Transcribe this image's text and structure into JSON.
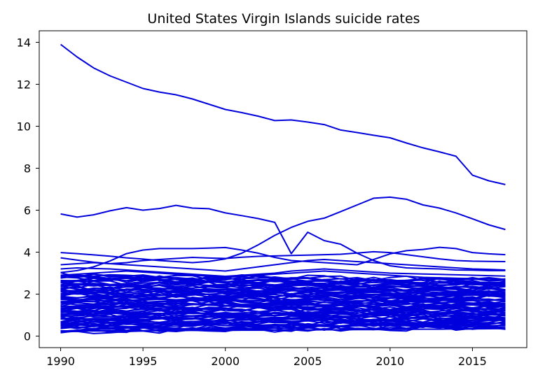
{
  "chart_data": {
    "type": "line",
    "title": "United States Virgin Islands suicide rates",
    "xlabel": "",
    "ylabel": "",
    "xlim": [
      1988.7,
      2018.3
    ],
    "ylim": [
      -0.55,
      14.55
    ],
    "x_ticks": [
      1990,
      1995,
      2000,
      2005,
      2010,
      2015
    ],
    "y_ticks": [
      0,
      2,
      4,
      6,
      8,
      10,
      12,
      14
    ],
    "grid": false,
    "legend": "none",
    "line_color": "#0000dd",
    "x": [
      1990,
      1991,
      1992,
      1993,
      1994,
      1995,
      1996,
      1997,
      1998,
      1999,
      2000,
      2001,
      2002,
      2003,
      2004,
      2005,
      2006,
      2007,
      2008,
      2009,
      2010,
      2011,
      2012,
      2013,
      2014,
      2015,
      2016,
      2017
    ],
    "series": [
      {
        "values": [
          13.9,
          13.3,
          12.78,
          12.4,
          12.1,
          11.8,
          11.63,
          11.5,
          11.3,
          11.05,
          10.8,
          10.65,
          10.48,
          10.27,
          10.3,
          10.2,
          10.08,
          9.82,
          9.7,
          9.57,
          9.45,
          9.2,
          8.97,
          8.78,
          8.57,
          7.67,
          7.4,
          7.22
        ]
      },
      {
        "values": [
          5.82,
          5.67,
          5.78,
          5.97,
          6.12,
          6.0,
          6.08,
          6.23,
          6.1,
          6.07,
          5.87,
          5.74,
          5.6,
          5.42,
          3.93,
          4.95,
          4.55,
          4.38,
          3.95,
          3.6,
          3.35,
          3.25,
          3.22,
          3.2,
          3.15,
          3.14,
          3.12,
          3.12
        ]
      },
      {
        "values": [
          3.03,
          3.12,
          3.3,
          3.58,
          3.93,
          4.1,
          4.17,
          4.17,
          4.17,
          4.19,
          4.22,
          4.1,
          3.95,
          3.75,
          3.6,
          3.55,
          3.5,
          3.45,
          3.4,
          3.65,
          3.92,
          4.07,
          4.13,
          4.23,
          4.17,
          3.98,
          3.92,
          3.88
        ]
      },
      {
        "values": [
          3.98,
          3.93,
          3.87,
          3.81,
          3.73,
          3.67,
          3.6,
          3.55,
          3.5,
          3.56,
          3.68,
          3.95,
          4.35,
          4.8,
          5.18,
          5.47,
          5.62,
          5.93,
          6.25,
          6.57,
          6.62,
          6.52,
          6.25,
          6.1,
          5.87,
          5.59,
          5.3,
          5.08
        ]
      },
      {
        "values": [
          3.73,
          3.62,
          3.52,
          3.45,
          3.5,
          3.6,
          3.65,
          3.7,
          3.75,
          3.72,
          3.7,
          3.76,
          3.8,
          3.82,
          3.84,
          3.86,
          3.88,
          3.9,
          3.96,
          4.02,
          3.98,
          3.88,
          3.78,
          3.68,
          3.6,
          3.57,
          3.56,
          3.55
        ]
      },
      {
        "values": [
          3.4,
          3.45,
          3.5,
          3.45,
          3.4,
          3.35,
          3.3,
          3.25,
          3.2,
          3.15,
          3.1,
          3.2,
          3.3,
          3.4,
          3.5,
          3.6,
          3.65,
          3.6,
          3.55,
          3.5,
          3.45,
          3.4,
          3.35,
          3.3,
          3.25,
          3.2,
          3.18,
          3.15
        ]
      },
      {
        "values": [
          3.2,
          3.25,
          3.22,
          3.2,
          3.15,
          3.1,
          3.05,
          3.0,
          2.95,
          2.9,
          2.85,
          2.9,
          2.95,
          3.0,
          3.1,
          3.15,
          3.2,
          3.15,
          3.1,
          3.05,
          3.0,
          2.98,
          2.96,
          2.94,
          2.92,
          2.9,
          2.88,
          2.86
        ]
      },
      {
        "values": [
          2.9,
          2.95,
          3.0,
          3.05,
          3.1,
          3.05,
          3.0,
          2.95,
          2.9,
          2.85,
          2.8,
          2.85,
          2.9,
          2.95,
          3.0,
          3.05,
          3.1,
          3.05,
          3.0,
          2.95,
          2.9,
          2.85,
          2.8,
          2.78,
          2.76,
          2.74,
          2.72,
          2.7
        ]
      },
      {
        "values": [
          0.85,
          0.82,
          0.8,
          0.58,
          0.18,
          0.5,
          0.62,
          0.66,
          0.7,
          0.72,
          0.74,
          0.76,
          0.78,
          0.8,
          0.82,
          0.84,
          0.86,
          0.88,
          0.9,
          0.6,
          0.28,
          0.6,
          0.62,
          0.5,
          0.38,
          0.45,
          0.48,
          0.5
        ]
      },
      {
        "values": [
          0.25,
          0.25,
          0.25,
          0.25,
          0.26,
          0.26,
          0.26,
          0.26,
          0.27,
          0.27,
          0.27,
          0.28,
          0.28,
          0.28,
          0.29,
          0.29,
          0.3,
          0.3,
          0.31,
          0.31,
          0.32,
          0.32,
          0.33,
          0.33,
          0.34,
          0.34,
          0.35,
          0.36
        ]
      }
    ],
    "band": {
      "low_start": 0.2,
      "low_end": 0.4,
      "high_start": 2.9,
      "high_end": 2.7,
      "count": 80
    }
  }
}
